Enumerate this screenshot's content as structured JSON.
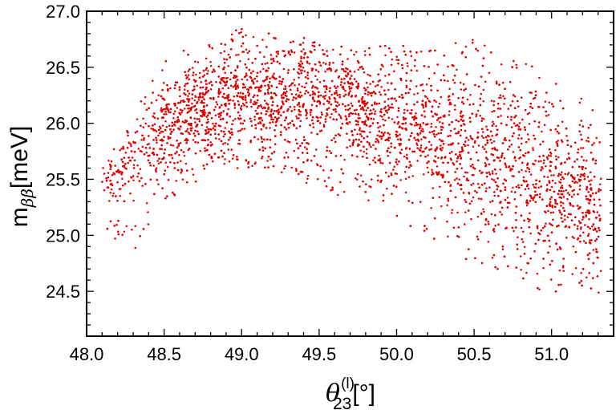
{
  "chart_data": {
    "type": "scatter",
    "title": "",
    "xlabel": {
      "symbol": "θ",
      "sub": "23",
      "sup": "(l)",
      "unit": "[°]"
    },
    "ylabel": {
      "symbol": "m",
      "sub": "ββ",
      "unit": "[meV]"
    },
    "xlim": [
      48.0,
      51.4
    ],
    "ylim": [
      24.1,
      27.0
    ],
    "x_ticks": [
      48.0,
      48.5,
      49.0,
      49.5,
      50.0,
      50.5,
      51.0
    ],
    "x_tick_labels": [
      "48.0",
      "48.5",
      "49.0",
      "49.5",
      "50.0",
      "50.5",
      "51.0"
    ],
    "y_ticks": [
      24.5,
      25.0,
      25.5,
      26.0,
      26.5,
      27.0
    ],
    "y_tick_labels": [
      "24.5",
      "25.0",
      "25.5",
      "26.0",
      "26.5",
      "27.0"
    ],
    "grid": false,
    "legend": "none",
    "marker_color": "#e00000",
    "series": [
      {
        "x_range": [
          48.1,
          51.32
        ],
        "approx_point_count": 6000,
        "envelope": {
          "x": [
            48.1,
            48.3,
            48.5,
            48.8,
            49.0,
            49.3,
            49.5,
            49.8,
            50.0,
            50.3,
            50.5,
            50.8,
            51.0,
            51.32
          ],
          "y_min": [
            25.0,
            24.85,
            25.3,
            25.55,
            25.6,
            25.55,
            25.4,
            25.3,
            25.15,
            24.9,
            24.75,
            24.6,
            24.45,
            24.45
          ],
          "y_max": [
            25.6,
            26.1,
            26.55,
            26.8,
            26.85,
            26.8,
            26.75,
            26.7,
            26.7,
            26.7,
            26.75,
            26.6,
            26.4,
            26.1
          ]
        },
        "center": {
          "x": [
            48.1,
            48.5,
            49.0,
            49.5,
            50.0,
            50.5,
            51.0,
            51.32
          ],
          "y": [
            25.45,
            25.95,
            26.25,
            26.25,
            26.0,
            25.8,
            25.45,
            25.25
          ]
        }
      }
    ]
  }
}
